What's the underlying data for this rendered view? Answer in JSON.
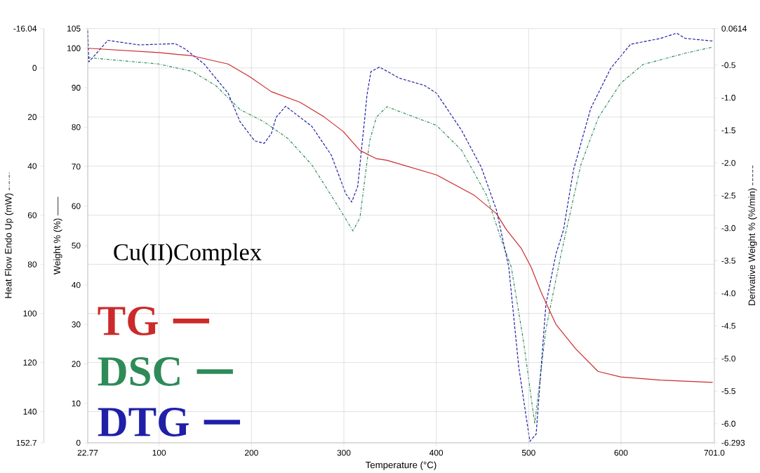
{
  "chart_data": {
    "type": "line",
    "xlabel": "Temperature (°C)",
    "ylabel": "Weight % (%)",
    "y2label": "Derivative Weight % (%/min)",
    "y3label": "Heat Flow Endo Up (mW)",
    "annotations": [
      "Cu(II)Complex"
    ],
    "xlim": [
      22.77,
      701.0
    ],
    "xticks": [
      22.77,
      100,
      200,
      300,
      400,
      500,
      600,
      {
        "value": 701,
        "label": "701.0"
      }
    ],
    "ylim": [
      0,
      105
    ],
    "yticks": [
      0,
      10,
      20,
      30,
      40,
      50,
      60,
      70,
      80,
      90,
      100,
      105
    ],
    "y2lim": [
      -6.293,
      0.0614
    ],
    "y2ticks": [
      -6.293,
      {
        "value": -6,
        "label": "-6.0"
      },
      -5.5,
      {
        "value": -5,
        "label": "-5.0"
      },
      -4.5,
      {
        "value": -4,
        "label": "-4.0"
      },
      -3.5,
      {
        "value": -3,
        "label": "-3.0"
      },
      -2.5,
      {
        "value": -2,
        "label": "-2.0"
      },
      -1.5,
      {
        "value": -1,
        "label": "-1.0"
      },
      -0.5,
      0.0614
    ],
    "y3lim": [
      152.7,
      -16.04
    ],
    "y3ticks": [
      -16.04,
      0,
      20,
      40,
      60,
      80,
      100,
      120,
      140,
      152.7
    ],
    "grid": true,
    "legend": "bottom left",
    "series": [
      {
        "name": "TG",
        "color": "#cc2a2a",
        "axis": "y",
        "line_style": "solid",
        "x": [
          22.8,
          99.3,
          135.7,
          174.7,
          198,
          221.5,
          252.6,
          278.6,
          299.3,
          317.4,
          335.3,
          346.6,
          400.3,
          440.8,
          465.1,
          476,
          492,
          502.7,
          513.3,
          529.6,
          551,
          575.1,
          599.6,
          642.7,
          699.2
        ],
        "values": [
          100.0,
          98.9,
          98.1,
          96.0,
          92.8,
          89.0,
          86.3,
          82.6,
          78.9,
          74.1,
          72.0,
          71.6,
          67.9,
          62.8,
          58.1,
          54.0,
          49.3,
          44.5,
          38.3,
          30.0,
          23.8,
          18.1,
          16.7,
          15.9,
          15.3
        ]
      },
      {
        "name": "DSC",
        "color": "#2e8b57",
        "axis": "y3",
        "line_style": "dotted",
        "x": [
          22.8,
          99.3,
          135.7,
          161.4,
          187.8,
          213.4,
          239.6,
          265.4,
          291.6,
          309.9,
          317.4,
          328,
          335.3,
          346.6,
          400.3,
          427.4,
          454.3,
          470.4,
          481.2,
          494.5,
          506.6,
          518.7,
          535,
          556.5,
          575.4,
          599.6,
          623.8,
          669.6,
          699.2
        ],
        "values": [
          -4.2,
          -1.6,
          1.4,
          7.2,
          17.0,
          21.9,
          28.8,
          39.5,
          55.1,
          66.4,
          61.0,
          29.6,
          20.0,
          15.8,
          23.4,
          33.5,
          51.7,
          70.0,
          81.1,
          111.5,
          144.9,
          106.4,
          76.0,
          39.5,
          20.3,
          6.2,
          -1.4,
          -6.0,
          -8.5
        ]
      },
      {
        "name": "DTG",
        "color": "#1f1fa8",
        "axis": "y2",
        "line_style": "dashed",
        "x": [
          22.8,
          24,
          44.6,
          78.5,
          117.5,
          127.9,
          148.6,
          174.7,
          187.7,
          203.3,
          213.7,
          221.5,
          226.7,
          237,
          265.4,
          286.4,
          302,
          308.5,
          315,
          322.7,
          325,
          329.3,
          338.5,
          360.1,
          387,
          400.3,
          427.4,
          448.9,
          465.1,
          478.5,
          489.3,
          501.3,
          508.1,
          518.7,
          529.5,
          537.7,
          548.5,
          567.3,
          588.8,
          610.3,
          642.7,
          660.2,
          669.6,
          699.2
        ],
        "values": [
          0.03,
          -0.45,
          -0.12,
          -0.19,
          -0.17,
          -0.25,
          -0.48,
          -0.93,
          -1.37,
          -1.66,
          -1.7,
          -1.55,
          -1.3,
          -1.13,
          -1.44,
          -1.88,
          -2.47,
          -2.6,
          -2.36,
          -1.3,
          -0.96,
          -0.6,
          -0.53,
          -0.7,
          -0.81,
          -0.93,
          -1.5,
          -2.07,
          -2.72,
          -3.6,
          -5.13,
          -6.27,
          -6.16,
          -4.17,
          -3.4,
          -3.03,
          -2.11,
          -1.16,
          -0.55,
          -0.18,
          -0.09,
          -0.01,
          -0.09,
          -0.13
        ]
      }
    ]
  }
}
